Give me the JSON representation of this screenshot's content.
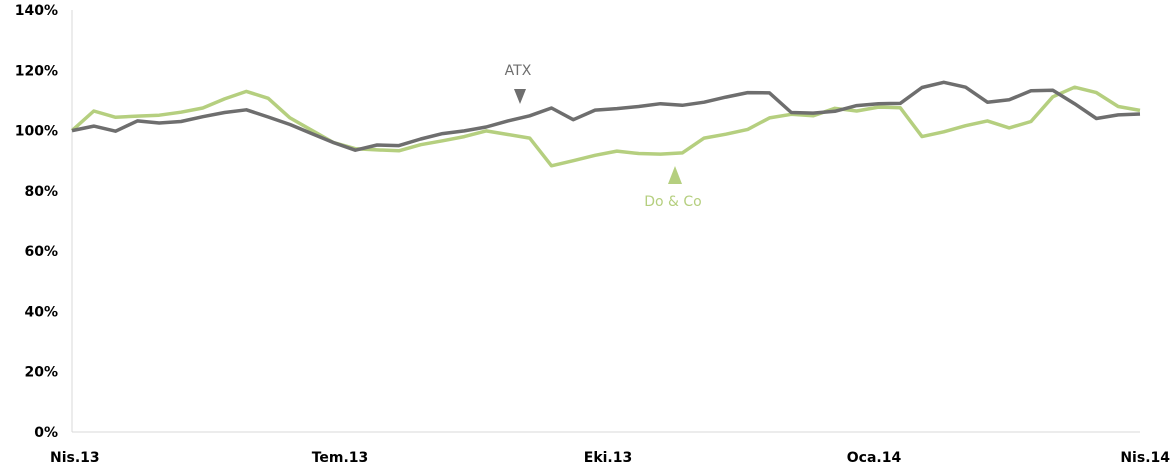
{
  "chart_data": {
    "type": "line",
    "x_ticks": [
      "Nis.13",
      "Tem.13",
      "Eki.13",
      "Oca.14",
      "Nis.14"
    ],
    "y_ticks": [
      "0%",
      "20%",
      "40%",
      "60%",
      "80%",
      "100%",
      "120%",
      "140%"
    ],
    "ylim": [
      0,
      140
    ],
    "grid": false,
    "colors": {
      "atx": "#6e6e6e",
      "doco": "#b5cf7f"
    },
    "series": [
      {
        "name": "ATX",
        "values": [
          100.0,
          101.5,
          99.8,
          103.2,
          102.5,
          103.0,
          104.6,
          106.0,
          106.9,
          104.5,
          102.0,
          99.0,
          96.0,
          93.5,
          95.2,
          95.0,
          97.2,
          99.0,
          99.9,
          101.2,
          103.2,
          104.9,
          107.5,
          103.6,
          106.8,
          107.3,
          108.0,
          108.9,
          108.4,
          109.4,
          111.1,
          112.6,
          112.5,
          106.0,
          105.8,
          106.4,
          108.3,
          108.9,
          109.0,
          114.3,
          116.0,
          114.4,
          109.4,
          110.2,
          113.2,
          113.4,
          108.9,
          104.0,
          105.2,
          105.5
        ]
      },
      {
        "name": "Do & Co",
        "values": [
          100.0,
          106.5,
          104.4,
          104.8,
          105.1,
          106.1,
          107.5,
          110.5,
          113.0,
          110.7,
          104.2,
          100.1,
          96.0,
          94.0,
          93.6,
          93.3,
          95.3,
          96.6,
          98.0,
          99.9,
          98.7,
          97.5,
          88.3,
          90.0,
          91.8,
          93.2,
          92.4,
          92.2,
          92.6,
          97.5,
          98.8,
          100.4,
          104.2,
          105.4,
          104.9,
          107.4,
          106.5,
          107.8,
          107.6,
          98.0,
          99.6,
          101.6,
          103.2,
          100.9,
          103.0,
          111.2,
          114.4,
          112.6,
          108.0,
          106.7
        ]
      }
    ],
    "annotations": [
      {
        "label": "ATX",
        "marker": "triangle-down",
        "series": "ATX"
      },
      {
        "label": "Do & Co",
        "marker": "triangle-up",
        "series": "Do & Co"
      }
    ]
  }
}
